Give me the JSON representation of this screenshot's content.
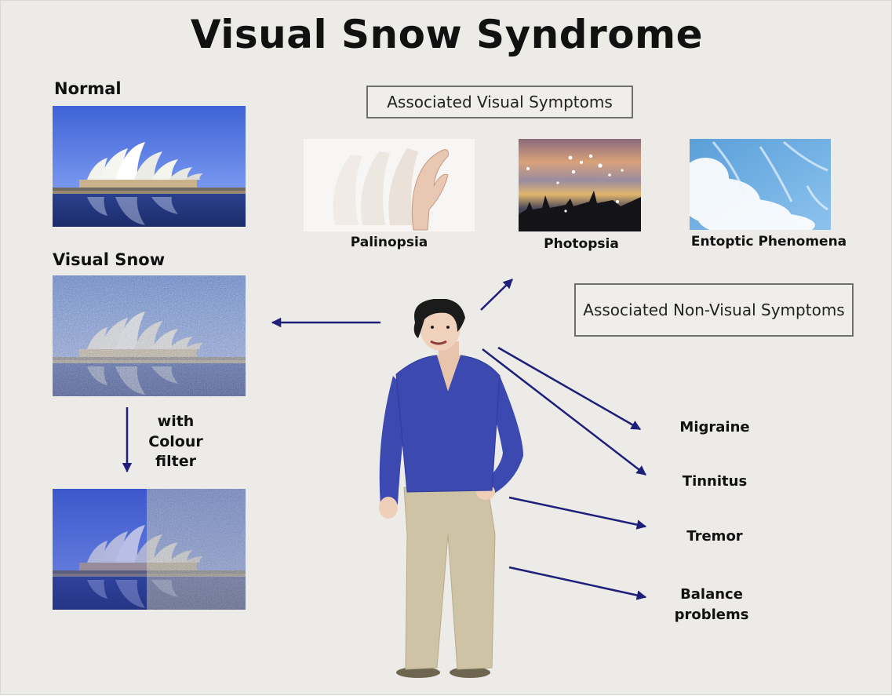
{
  "title": "Visual Snow Syndrome",
  "panels": {
    "normal_label": "Normal",
    "visual_snow_label": "Visual Snow",
    "filter_label_lines": [
      "with",
      "Colour",
      "filter"
    ]
  },
  "visual_symptoms": {
    "header": "Associated Visual Symptoms",
    "items": [
      "Palinopsia",
      "Photopsia",
      "Entoptic Phenomena"
    ]
  },
  "non_visual_symptoms": {
    "header": "Associated Non-Visual Symptoms",
    "items": [
      "Migraine",
      "Tinnitus",
      "Tremor",
      "Balance problems"
    ]
  },
  "colors": {
    "background": "#ecebe7",
    "arrow": "#1f1f7a",
    "shirt": "#3b49b0",
    "trousers": "#cfc3a6",
    "sky": "#4a6fd8",
    "water": "#2b3f86"
  },
  "icons": [
    "opera-house-photo",
    "snow-noise-photo",
    "hand-trail-photo",
    "sunset-flashes-photo",
    "sky-floaters-photo",
    "man-illustration"
  ]
}
